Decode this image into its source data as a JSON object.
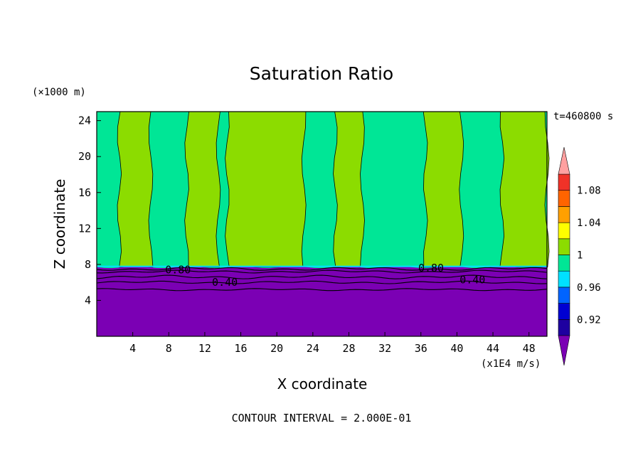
{
  "chart_data": {
    "type": "heatmap",
    "title": "Saturation Ratio",
    "xlabel": "X coordinate",
    "ylabel": "Z coordinate",
    "y_unit": "(×1000 m)",
    "x_unit": "(x1E4 m/s)",
    "time_label": "t=460800 s",
    "footer": "CONTOUR INTERVAL = 2.000E-01",
    "xlim": [
      0,
      50
    ],
    "ylim": [
      0,
      25
    ],
    "x_ticks": [
      4,
      8,
      12,
      16,
      20,
      24,
      28,
      32,
      36,
      40,
      44,
      48
    ],
    "y_ticks": [
      4,
      8,
      12,
      16,
      20,
      24
    ],
    "contour_labels": [
      {
        "text": "0.80",
        "x": 7.6,
        "z": 7.4
      },
      {
        "text": "0.40",
        "x": 12.8,
        "z": 6.0
      },
      {
        "text": "0.80",
        "x": 35.7,
        "z": 7.6
      },
      {
        "text": "0.40",
        "x": 40.3,
        "z": 6.3
      }
    ],
    "colorbar": {
      "levels": [
        0.92,
        0.96,
        1,
        1.04,
        1.08
      ],
      "level_labels": [
        "0.92",
        "0.96",
        "1",
        "1.04",
        "1.08"
      ],
      "colors": [
        "#7b00b4",
        "#1e00a0",
        "#0000d2",
        "#0064ff",
        "#00e1ff",
        "#00e696",
        "#8cdc00",
        "#ffff00",
        "#ffa000",
        "#ff6400",
        "#f03228",
        "#ffa0a0"
      ]
    },
    "regions": {
      "subsaturated_top_z": 7.7,
      "inner_contour_z": 5.2,
      "supersat_columns_x": [
        [
          2.5,
          6.0
        ],
        [
          10.0,
          13.5
        ],
        [
          14.5,
          23.0
        ],
        [
          26.5,
          29.5
        ],
        [
          36.5,
          40.5
        ],
        [
          45.0,
          50.0
        ]
      ]
    }
  }
}
